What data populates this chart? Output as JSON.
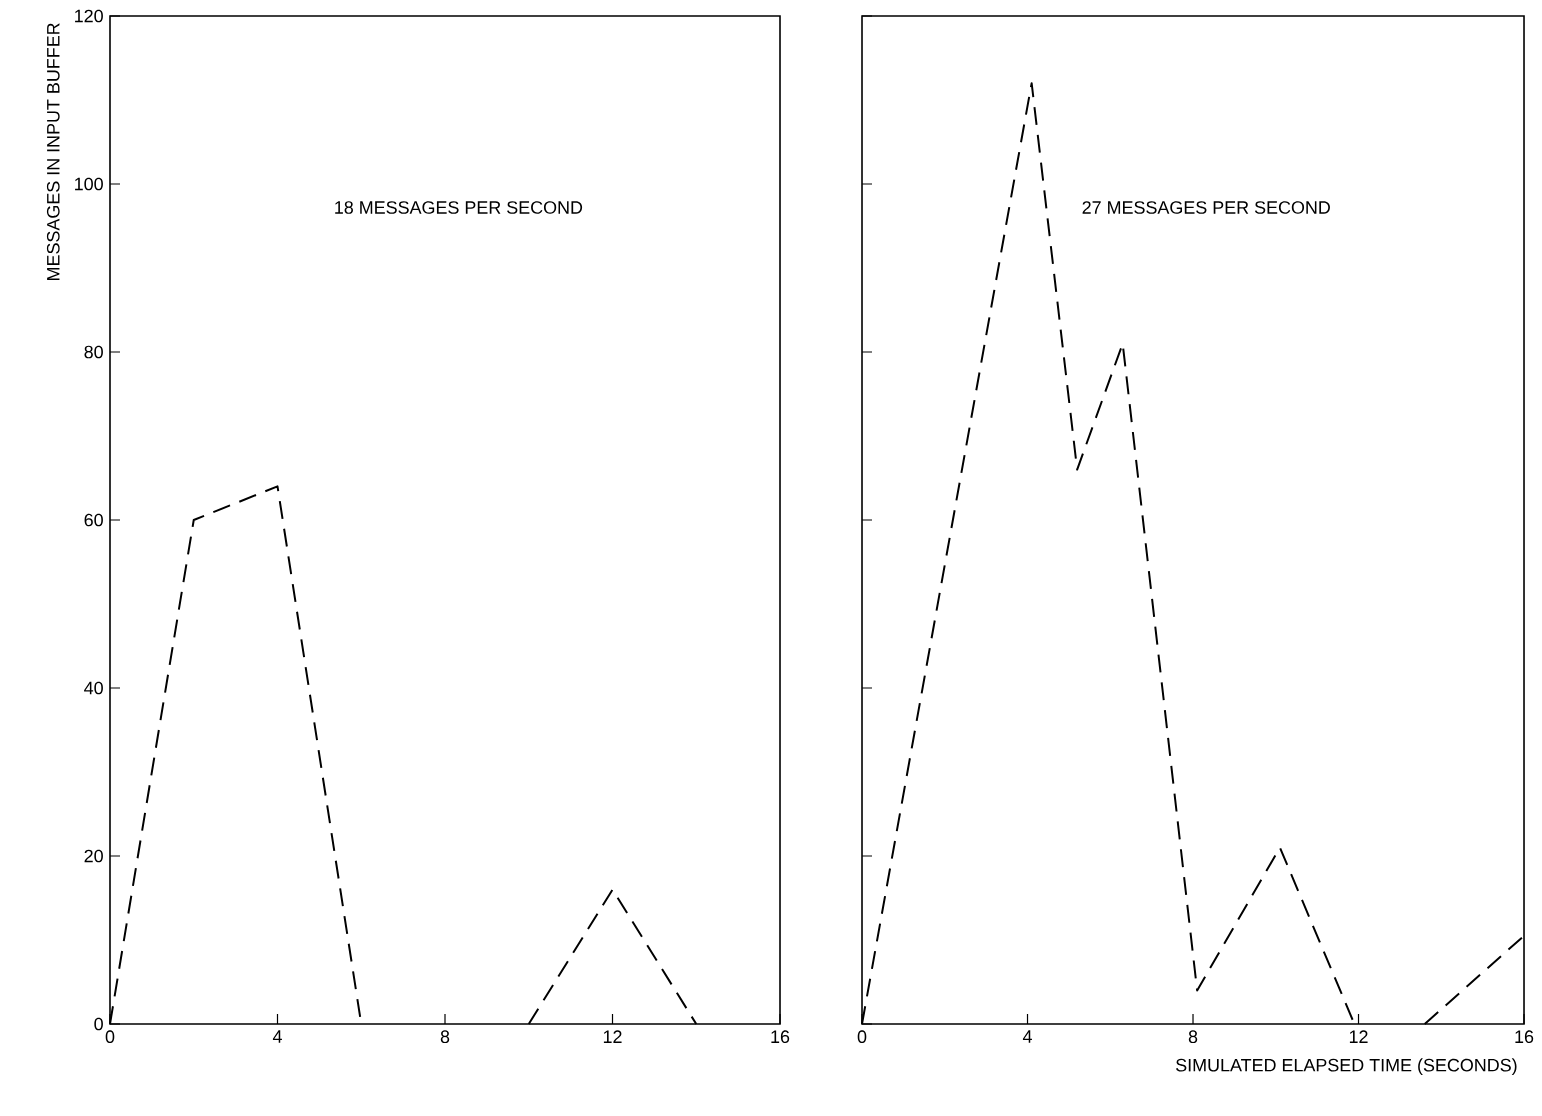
{
  "chart_data": [
    {
      "type": "line",
      "ylabel": "MESSAGES IN INPUT BUFFER",
      "annotations": [
        "18 MESSAGES PER SECOND"
      ],
      "x": [
        0,
        2,
        4,
        6,
        null,
        10,
        12,
        14
      ],
      "series": [
        {
          "color": "#000000",
          "values": [
            0,
            60,
            64,
            0,
            null,
            0,
            16,
            0
          ]
        }
      ],
      "xlim": [
        0,
        16
      ],
      "ylim": [
        0,
        120
      ],
      "xticks": [
        0,
        4,
        8,
        12,
        16
      ],
      "yticks": [
        0,
        20,
        40,
        60,
        80,
        100,
        120
      ],
      "grid": false,
      "line_style": "dashed"
    },
    {
      "type": "line",
      "xlabel": "SIMULATED ELAPSED TIME (SECONDS)",
      "annotations": [
        "27 MESSAGES PER SECOND"
      ],
      "x": [
        0,
        4.1,
        5.2,
        6.3,
        8.1,
        10.1,
        11.9,
        null,
        13.6,
        16
      ],
      "series": [
        {
          "color": "#000000",
          "values": [
            0,
            112,
            66,
            81,
            4,
            21,
            0,
            null,
            0,
            10.5
          ]
        }
      ],
      "xlim": [
        0,
        16
      ],
      "ylim": [
        0,
        120
      ],
      "xticks": [
        0,
        4,
        8,
        12,
        16
      ],
      "yticks": [
        0,
        20,
        40,
        60,
        80,
        100,
        120
      ],
      "grid": false,
      "line_style": "dashed",
      "tick_labels": "x"
    }
  ]
}
